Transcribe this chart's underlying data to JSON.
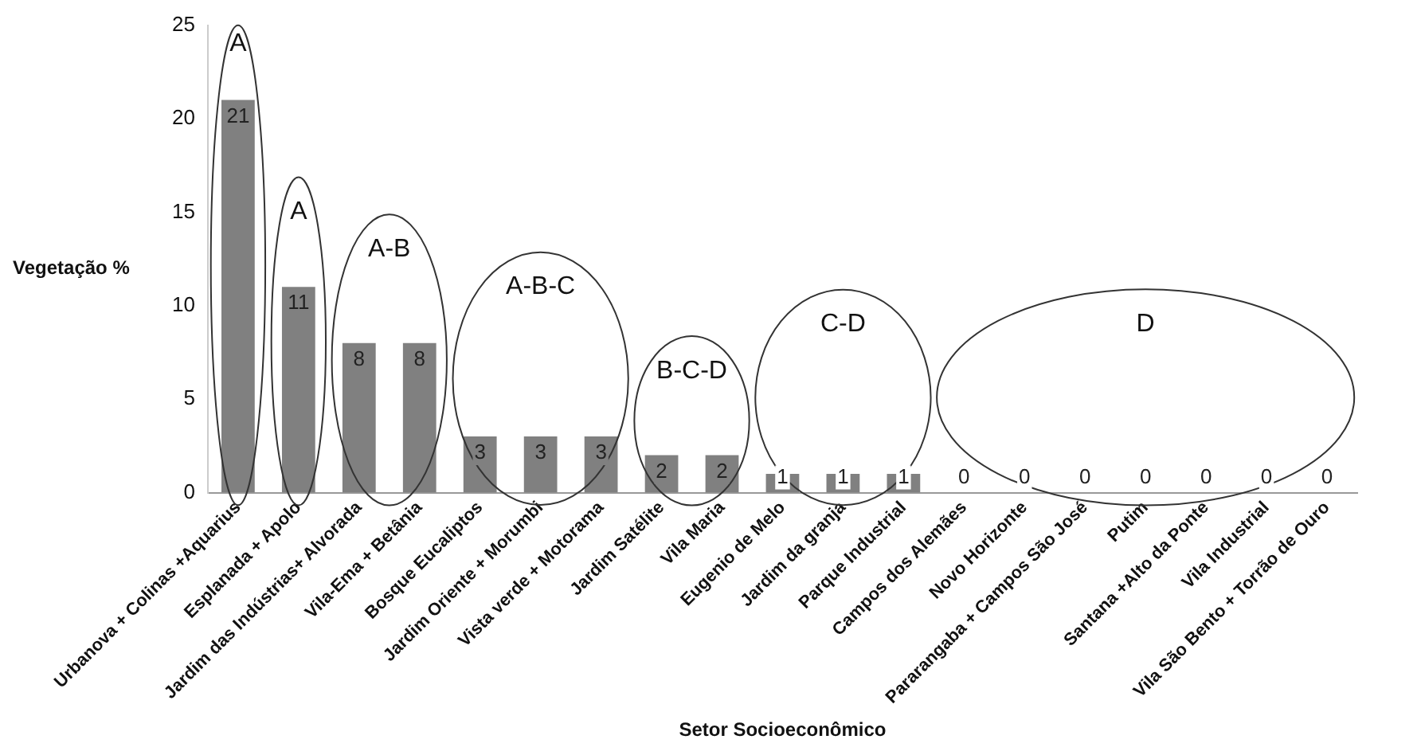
{
  "chart_data": {
    "type": "bar",
    "xlabel": "Setor Socioeconômico",
    "ylabel": "Vegetação %",
    "categories": [
      "Urbanova + Colinas +Aquarius",
      "Esplanada + Apolo",
      "Jardim das Indústrias+ Alvorada",
      "Vila-Ema + Betânia",
      "Bosque Eucaliptos",
      "Jardim Oriente + Morumbi",
      "Vista verde + Motorama",
      "Jardim Satélite",
      "Vila Maria",
      "Eugenio de Melo",
      "Jardim da granja",
      "Parque Industrial",
      "Campos dos Alemães",
      "Novo Horizonte",
      "Pararangaba + Campos São José",
      "Putim",
      "Santana +Alto da Ponte",
      "Vila Industrial",
      "Vila São Bento + Torrão de Ouro"
    ],
    "values": [
      21,
      11,
      8,
      8,
      3,
      3,
      3,
      2,
      2,
      1,
      1,
      1,
      0,
      0,
      0,
      0,
      0,
      0,
      0
    ],
    "color": "#808080",
    "data_labels": true,
    "ylim": [
      0,
      25
    ],
    "yticks": [
      0,
      5,
      10,
      15,
      20,
      25
    ],
    "grid": false,
    "annotations": [
      "A",
      "A",
      "A-B",
      "A-B-C",
      "B-C-D",
      "C-D",
      "D"
    ]
  }
}
